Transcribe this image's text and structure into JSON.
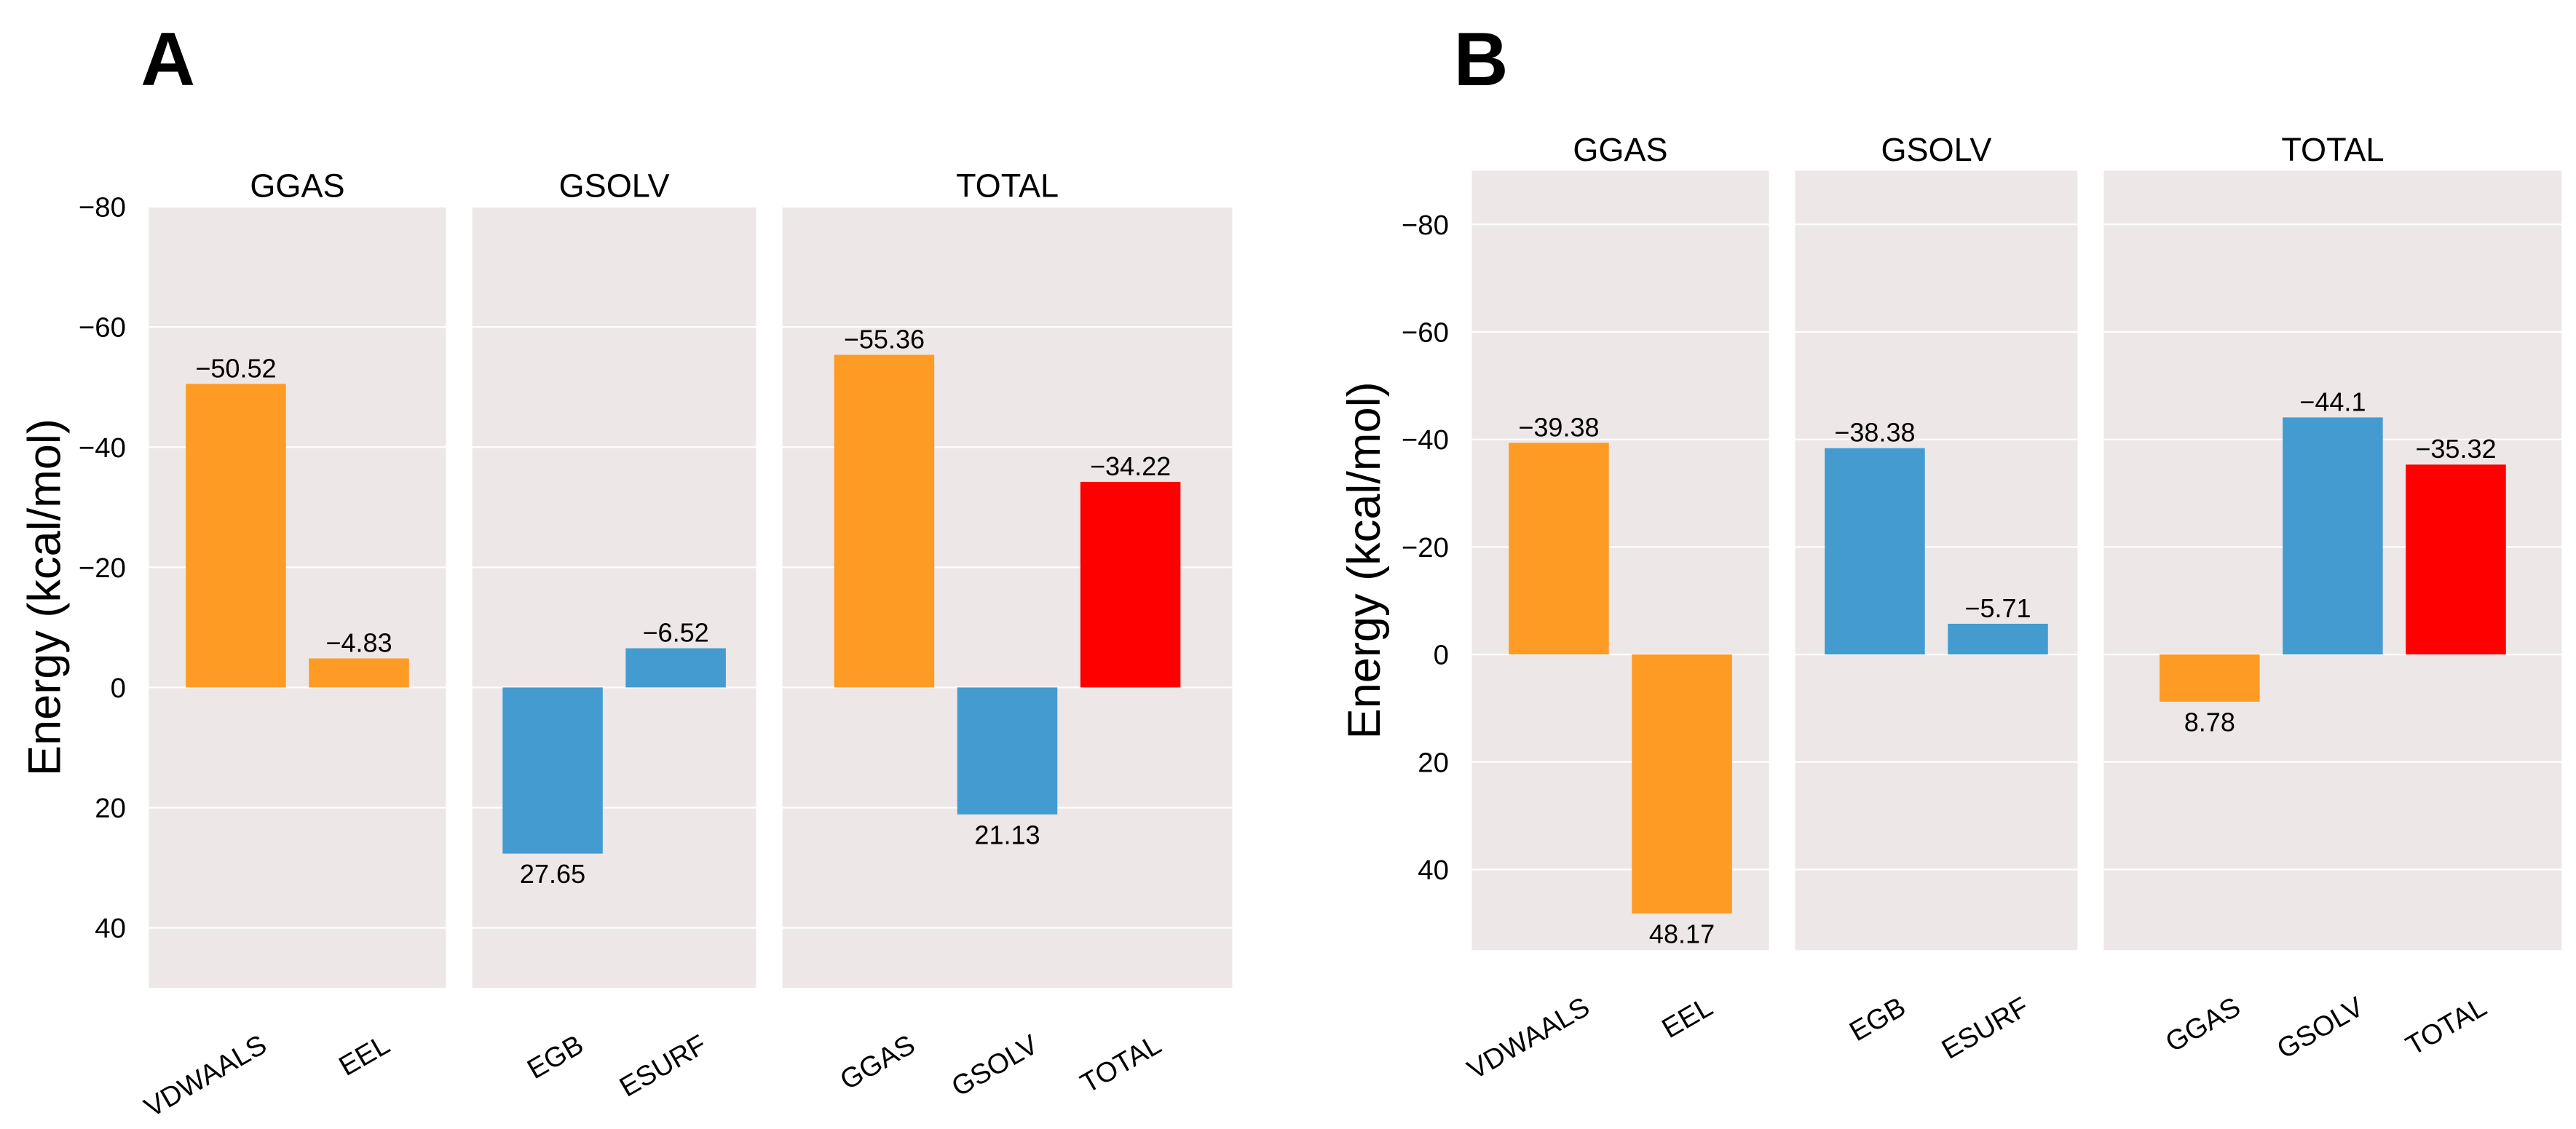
{
  "chart_data": [
    {
      "type": "bar",
      "panel_label": "A",
      "ylabel": "Energy (kcal/mol)",
      "ylim": [
        50,
        -80
      ],
      "yticks": [
        {
          "value": -80,
          "label": "−80"
        },
        {
          "value": -60,
          "label": "−60"
        },
        {
          "value": -40,
          "label": "−40"
        },
        {
          "value": -20,
          "label": "−20"
        },
        0,
        20,
        40
      ],
      "grid": true,
      "facets": [
        {
          "title": "GGAS",
          "categories": [
            "VDWAALS",
            "EEL"
          ],
          "values": [
            -50.52,
            -4.83
          ],
          "value_labels": [
            "−50.52",
            "−4.83"
          ],
          "colors": [
            "#fe9b24",
            "#fe9b24"
          ]
        },
        {
          "title": "GSOLV",
          "categories": [
            "EGB",
            "ESURF"
          ],
          "values": [
            27.65,
            -6.52
          ],
          "value_labels": [
            "27.65",
            "−6.52"
          ],
          "colors": [
            "#439bd0",
            "#439bd0"
          ]
        },
        {
          "title": "TOTAL",
          "categories": [
            "GGAS",
            "GSOLV",
            "TOTAL"
          ],
          "values": [
            -55.36,
            21.13,
            -34.22
          ],
          "value_labels": [
            "−55.36",
            "21.13",
            "−34.22"
          ],
          "colors": [
            "#fe9b24",
            "#439bd0",
            "#fe0000"
          ]
        }
      ]
    },
    {
      "type": "bar",
      "panel_label": "B",
      "ylabel": "Energy (kcal/mol)",
      "ylim": [
        55,
        -90
      ],
      "yticks": [
        {
          "value": -80,
          "label": "−80"
        },
        {
          "value": -60,
          "label": "−60"
        },
        {
          "value": -40,
          "label": "−40"
        },
        {
          "value": -20,
          "label": "−20"
        },
        0,
        20,
        40
      ],
      "grid": true,
      "facets": [
        {
          "title": "GGAS",
          "categories": [
            "VDWAALS",
            "EEL"
          ],
          "values": [
            -39.38,
            48.17
          ],
          "value_labels": [
            "−39.38",
            "48.17"
          ],
          "colors": [
            "#fe9b24",
            "#fe9b24"
          ]
        },
        {
          "title": "GSOLV",
          "categories": [
            "EGB",
            "ESURF"
          ],
          "values": [
            -38.38,
            -5.71
          ],
          "value_labels": [
            "−38.38",
            "−5.71"
          ],
          "colors": [
            "#439bd0",
            "#439bd0"
          ]
        },
        {
          "title": "TOTAL",
          "categories": [
            "GGAS",
            "GSOLV",
            "TOTAL"
          ],
          "values": [
            8.78,
            -44.1,
            -35.32
          ],
          "value_labels": [
            "8.78",
            "−44.1",
            "−35.32"
          ],
          "colors": [
            "#fe9b24",
            "#439bd0",
            "#fe0000"
          ]
        }
      ]
    }
  ]
}
